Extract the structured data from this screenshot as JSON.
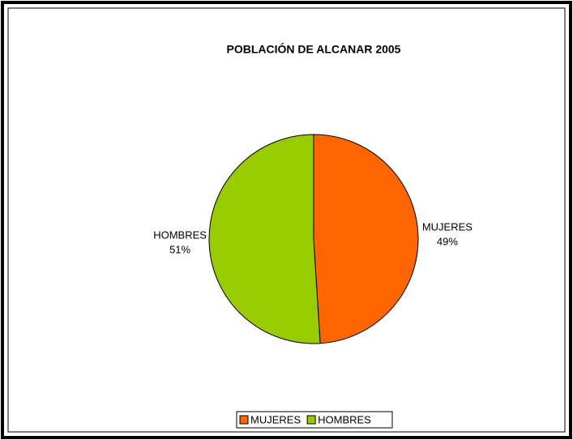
{
  "chart_data": {
    "type": "pie",
    "title": "POBLACIÓN DE ALCANAR 2005",
    "categories": [
      "MUJERES",
      "HOMBRES"
    ],
    "values": [
      49,
      51
    ],
    "value_labels": [
      "49%",
      "51%"
    ],
    "colors": [
      "#ff6600",
      "#99cc00"
    ],
    "legend": "bottom"
  }
}
